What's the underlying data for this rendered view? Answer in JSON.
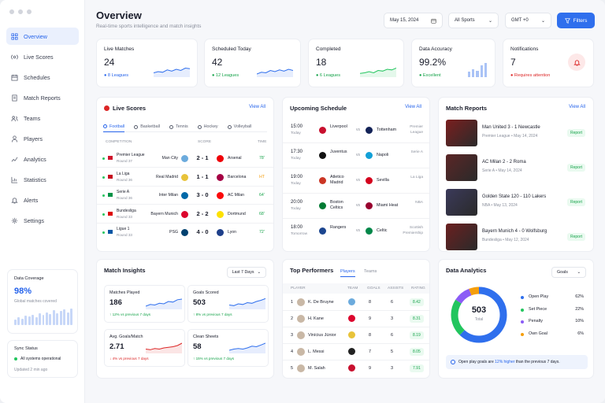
{
  "header": {
    "title": "Overview",
    "subtitle": "Real-time sports intelligence and match insights",
    "date": "May 15, 2024",
    "sport": "All Sports",
    "tz": "GMT +0",
    "filters": "Filters"
  },
  "colors": {
    "accent": "#2f6fed",
    "green": "#16a34a",
    "red": "#dc2626",
    "orange": "#f59e0b",
    "purple": "#8b5cf6"
  },
  "sidebar": {
    "items": [
      {
        "label": "Overview",
        "icon": "grid-icon"
      },
      {
        "label": "Live Scores",
        "icon": "live-icon"
      },
      {
        "label": "Schedules",
        "icon": "calendar-icon"
      },
      {
        "label": "Match Reports",
        "icon": "report-icon"
      },
      {
        "label": "Teams",
        "icon": "teams-icon"
      },
      {
        "label": "Players",
        "icon": "user-icon"
      },
      {
        "label": "Analytics",
        "icon": "analytics-icon"
      },
      {
        "label": "Statistics",
        "icon": "stats-icon"
      },
      {
        "label": "Alerts",
        "icon": "bell-icon"
      },
      {
        "label": "Settings",
        "icon": "gear-icon"
      }
    ],
    "coverage": {
      "title": "Data Coverage",
      "value": "98%",
      "label": "Global matches covered",
      "bars": [
        0.3,
        0.45,
        0.35,
        0.55,
        0.5,
        0.6,
        0.45,
        0.7,
        0.6,
        0.75,
        0.65,
        0.85,
        0.7,
        0.8,
        0.9,
        0.75,
        0.95
      ]
    },
    "sync": {
      "title": "Sync Status",
      "status": "All systems operational",
      "updated": "Updated 2 min ago"
    }
  },
  "stats": [
    {
      "title": "Live Matches",
      "value": "24",
      "foot": "8 Leagues"
    },
    {
      "title": "Scheduled Today",
      "value": "42",
      "foot": "12 Leagues"
    },
    {
      "title": "Completed",
      "value": "18",
      "foot": "6 Leagues"
    },
    {
      "title": "Data Accuracy",
      "value": "99.2%",
      "foot": "Excellent"
    },
    {
      "title": "Notifications",
      "value": "7",
      "foot": "Requires attention"
    }
  ],
  "live": {
    "title": "Live Scores",
    "view": "View All",
    "tabs": [
      "Football",
      "Basketball",
      "Tennis",
      "Hockey",
      "Volleyball"
    ],
    "cols": [
      "COMPETITION",
      "SCORE",
      "TIME"
    ],
    "rows": [
      {
        "comp": "Premier League",
        "round": "Round 37",
        "home": "Man City",
        "score": "2 - 1",
        "away": "Arsenal",
        "time": "78'",
        "hc": "#6cabdd",
        "ac": "#ef0107",
        "flag": "#cf142b"
      },
      {
        "comp": "La Liga",
        "round": "Round 36",
        "home": "Real Madrid",
        "score": "1 - 1",
        "away": "Barcelona",
        "time": "HT",
        "hc": "#e8c33a",
        "ac": "#a50044",
        "flag": "#c60b1e"
      },
      {
        "comp": "Serie A",
        "round": "Round 36",
        "home": "Inter Milan",
        "score": "3 - 0",
        "away": "AC Milan",
        "time": "64'",
        "hc": "#0068a8",
        "ac": "#fb090b",
        "flag": "#009246"
      },
      {
        "comp": "Bundesliga",
        "round": "Round 33",
        "home": "Bayern Munich",
        "score": "2 - 2",
        "away": "Dortmund",
        "time": "68'",
        "hc": "#dc052d",
        "ac": "#fde100",
        "flag": "#dd0000"
      },
      {
        "comp": "Ligue 1",
        "round": "Round 33",
        "home": "PSG",
        "score": "4 - 0",
        "away": "Lyon",
        "time": "72'",
        "hc": "#004170",
        "ac": "#1e3f8a",
        "flag": "#0055a4"
      }
    ]
  },
  "schedule": {
    "title": "Upcoming Schedule",
    "view": "View All",
    "rows": [
      {
        "time": "15:00",
        "day": "Today",
        "home": "Liverpool",
        "away": "Tottenham",
        "league": "Premier League",
        "hc": "#c8102e",
        "ac": "#132257"
      },
      {
        "time": "17:30",
        "day": "Today",
        "home": "Juventus",
        "away": "Napoli",
        "league": "Serie A",
        "hc": "#111",
        "ac": "#12a0d7"
      },
      {
        "time": "19:00",
        "day": "Today",
        "home": "Atletico Madrid",
        "away": "Sevilla",
        "league": "La Liga",
        "hc": "#cb3524",
        "ac": "#d4011d"
      },
      {
        "time": "20:00",
        "day": "Today",
        "home": "Boston Celtics",
        "away": "Miami Heat",
        "league": "NBA",
        "hc": "#007a33",
        "ac": "#98002e"
      },
      {
        "time": "18:00",
        "day": "Tomorrow",
        "home": "Rangers",
        "away": "Celtic",
        "league": "Scottish Premiership",
        "hc": "#1b458f",
        "ac": "#018749"
      }
    ]
  },
  "reports": {
    "title": "Match Reports",
    "view": "View All",
    "badge": "Report",
    "rows": [
      {
        "title": "Man United 3 - 1 Newcastle",
        "meta": "Premier League • May 14, 2024",
        "img": "#7a1f1f"
      },
      {
        "title": "AC Milan 2 - 2 Roma",
        "meta": "Serie A • May 14, 2024",
        "img": "#5b2626"
      },
      {
        "title": "Golden State 120 - 110 Lakers",
        "meta": "NBA • May 13, 2024",
        "img": "#3b3a5a"
      },
      {
        "title": "Bayern Munich 4 - 0 Wolfsburg",
        "meta": "Bundesliga • May 12, 2024",
        "img": "#6b2020"
      }
    ]
  },
  "insights": {
    "title": "Match Insights",
    "range": "Last 7 Days",
    "cards": [
      {
        "title": "Matches Played",
        "value": "186",
        "delta": "12% vs previous 7 days",
        "up": true
      },
      {
        "title": "Goals Scored",
        "value": "503",
        "delta": "8% vs previous 7 days",
        "up": true
      },
      {
        "title": "Avg. Goals/Match",
        "value": "2.71",
        "delta": "4% vs previous 7 days",
        "up": false
      },
      {
        "title": "Clean Sheets",
        "value": "58",
        "delta": "15% vs previous 7 days",
        "up": true
      }
    ]
  },
  "performers": {
    "title": "Top Performers",
    "tabs": [
      "Players",
      "Teams"
    ],
    "cols": [
      "PLAYER",
      "TEAM",
      "GOALS",
      "ASSISTS",
      "RATING"
    ],
    "rows": [
      {
        "rank": "1",
        "name": "K. De Bruyne",
        "goals": "8",
        "assists": "6",
        "rating": "8.42",
        "tc": "#6cabdd"
      },
      {
        "rank": "2",
        "name": "H. Kane",
        "goals": "9",
        "assists": "3",
        "rating": "8.31",
        "tc": "#dc052d"
      },
      {
        "rank": "3",
        "name": "Vinícius Júnior",
        "goals": "8",
        "assists": "6",
        "rating": "8.19",
        "tc": "#e8c33a"
      },
      {
        "rank": "4",
        "name": "L. Messi",
        "goals": "7",
        "assists": "5",
        "rating": "8.05",
        "tc": "#222"
      },
      {
        "rank": "5",
        "name": "M. Salah",
        "goals": "9",
        "assists": "3",
        "rating": "7.91",
        "tc": "#c8102e"
      }
    ]
  },
  "analytics": {
    "title": "Data Analytics",
    "dropdown": "Goals",
    "total": "503",
    "total_label": "Total",
    "legend": [
      {
        "label": "Open Play",
        "pct": "62%",
        "value": 62,
        "color": "#2f6fed"
      },
      {
        "label": "Set Piece",
        "pct": "22%",
        "value": 22,
        "color": "#22c55e"
      },
      {
        "label": "Penalty",
        "pct": "10%",
        "value": 10,
        "color": "#8b5cf6"
      },
      {
        "label": "Own Goal",
        "pct": "6%",
        "value": 6,
        "color": "#f59e0b"
      }
    ],
    "note_pre": "Open play goals are ",
    "note_hl": "12% higher",
    "note_post": " than the previous 7 days."
  }
}
